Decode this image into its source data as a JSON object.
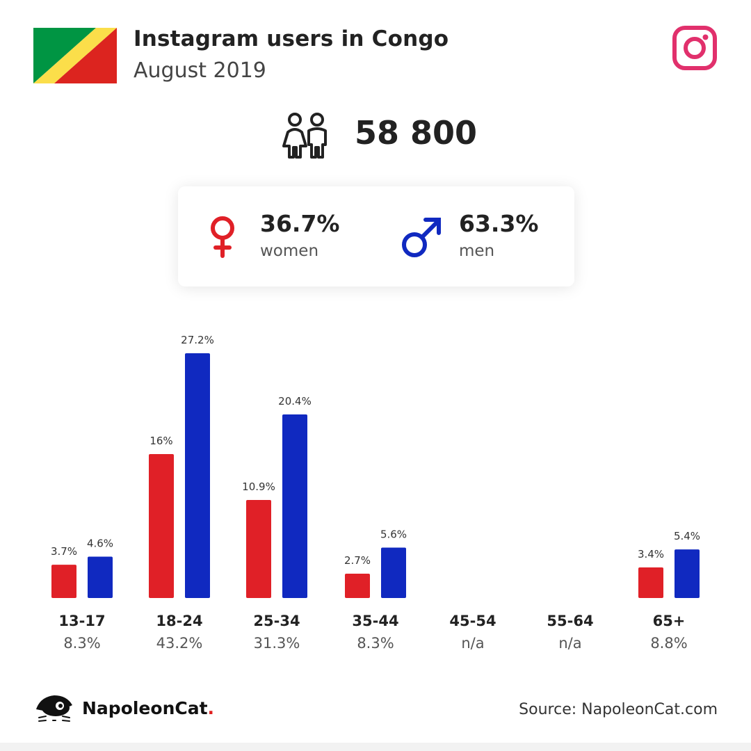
{
  "header": {
    "title": "Instagram users in Congo",
    "subtitle": "August 2019",
    "total": "58 800"
  },
  "flag": {
    "colors": {
      "green": "#009543",
      "yellow": "#FBDE4A",
      "red": "#DC241F"
    }
  },
  "icons": {
    "app": "instagram-icon",
    "people": "people-icon",
    "female": "female-symbol-icon",
    "male": "male-symbol-icon",
    "brand": "napoleoncat-logo"
  },
  "gender": {
    "women": {
      "pct": "36.7%",
      "label": "women",
      "color": "#e02027"
    },
    "men": {
      "pct": "63.3%",
      "label": "men",
      "color": "#1029c0"
    }
  },
  "chart_data": {
    "type": "bar",
    "categories": [
      "13-17",
      "18-24",
      "25-34",
      "35-44",
      "45-54",
      "55-64",
      "65+"
    ],
    "category_totals": [
      "8.3%",
      "43.2%",
      "31.3%",
      "8.3%",
      "n/a",
      "n/a",
      "8.8%"
    ],
    "series": [
      {
        "name": "women",
        "color": "#e02027",
        "values": [
          3.7,
          16,
          10.9,
          2.7,
          null,
          null,
          3.4
        ],
        "labels": [
          "3.7%",
          "16%",
          "10.9%",
          "2.7%",
          null,
          null,
          "3.4%"
        ]
      },
      {
        "name": "men",
        "color": "#1029c0",
        "values": [
          4.6,
          27.2,
          20.4,
          5.6,
          null,
          null,
          5.4
        ],
        "labels": [
          "4.6%",
          "27.2%",
          "20.4%",
          "5.6%",
          null,
          null,
          "5.4%"
        ]
      }
    ],
    "ylim": [
      0,
      27.2
    ],
    "grid": false,
    "legend": "none"
  },
  "footer": {
    "brand_name": "NapoleonCat",
    "brand_dot": ".",
    "source": "Source: NapoleonCat.com"
  }
}
